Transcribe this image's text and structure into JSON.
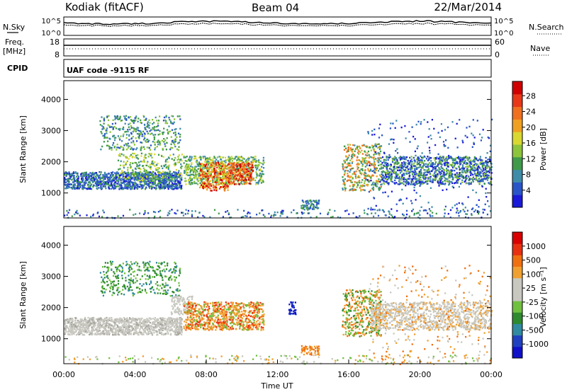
{
  "header": {
    "station": "Kodiak (fitACF)",
    "beam": "Beam 04",
    "date": "22/Mar/2014"
  },
  "noise_panel": {
    "left_label": "N.Sky",
    "left_ticks": [
      "10^5",
      "10^0"
    ],
    "right_ticks": [
      "10^5",
      "10^0"
    ],
    "right_label": "N.Search"
  },
  "freq_panel": {
    "left_label_1": "Freq.",
    "left_label_2": "[MHz]",
    "left_ticks": [
      "18",
      "8"
    ],
    "right_ticks": [
      "60",
      "0"
    ],
    "right_label": "Nave"
  },
  "cpid_panel": {
    "label": "CPID",
    "program": "UAF code -9115 RF"
  },
  "chart_data": [
    {
      "type": "heatmap",
      "name": "power",
      "ylabel": "Slant Range [km]",
      "ylim": [
        200,
        4600
      ],
      "yticks": [
        "4000",
        "3000",
        "2000",
        "1000"
      ],
      "xlim": [
        0,
        24
      ],
      "colorbar": {
        "label": "Power [dB]",
        "ticks": [
          "28",
          "24",
          "20",
          "16",
          "12",
          "8",
          "4"
        ],
        "colors": [
          "#1a1ad8",
          "#2a55c8",
          "#3f8ca8",
          "#3f9a4a",
          "#8cc43c",
          "#d8d830",
          "#f0a020",
          "#f07020",
          "#e83818",
          "#d00000"
        ]
      }
    },
    {
      "type": "heatmap",
      "name": "velocity",
      "ylabel": "Slant Range [km]",
      "ylim": [
        200,
        4600
      ],
      "yticks": [
        "4000",
        "3000",
        "2000",
        "1000"
      ],
      "xlim": [
        0,
        24
      ],
      "xticks": [
        "00:00",
        "04:00",
        "08:00",
        "12:00",
        "16:00",
        "20:00",
        "00:00"
      ],
      "xlabel": "Time UT",
      "colorbar": {
        "label": "Velocity [m s⁻¹]",
        "ticks": [
          "1000",
          "500",
          "100",
          "25",
          "-25",
          "-100",
          "-500",
          "-1000"
        ],
        "colors": [
          "#1010c8",
          "#2040c0",
          "#308aa0",
          "#2e8a2e",
          "#70c040",
          "#c8c8c0",
          "#c8c8c0",
          "#f0a030",
          "#f07010",
          "#e83010",
          "#d80000"
        ]
      }
    }
  ]
}
